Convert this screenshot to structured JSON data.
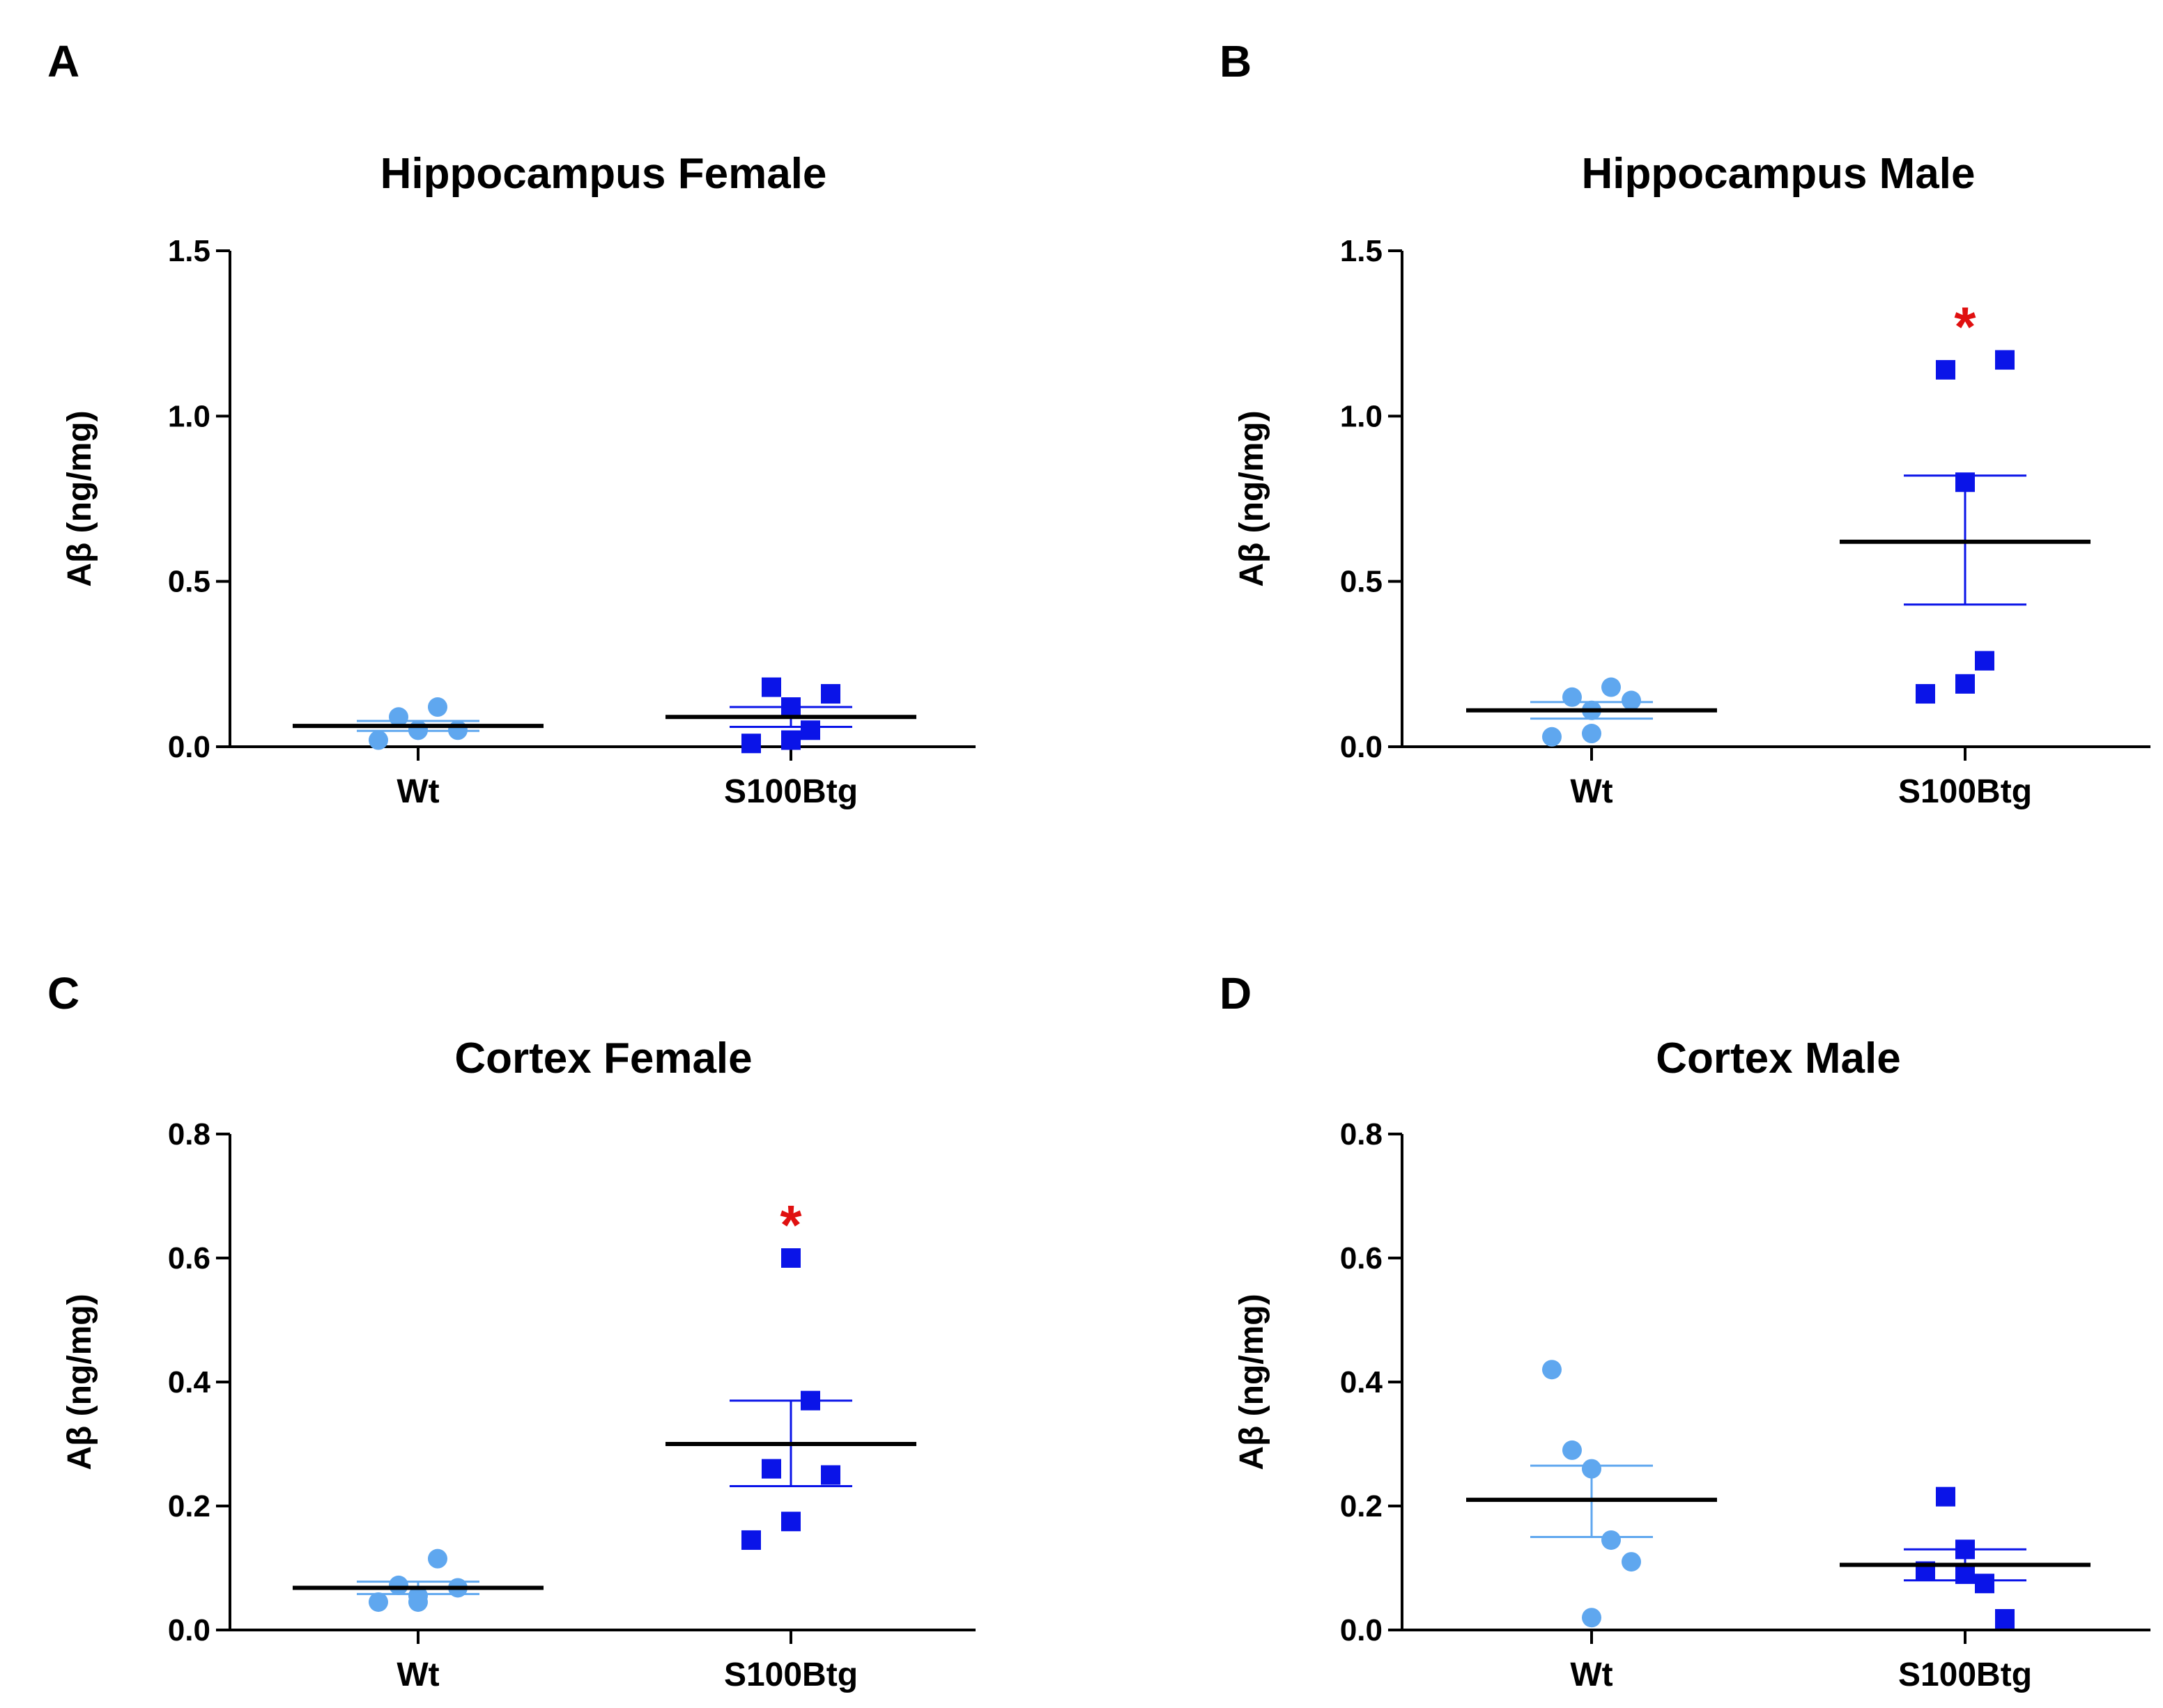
{
  "figure": {
    "colors": {
      "wt": "#5fa7ef",
      "tg": "#0a14e8",
      "mean": "#000000",
      "significance": "#e01010"
    },
    "marker_icons": {
      "wt": "circle-icon",
      "tg": "square-icon"
    }
  },
  "chart_data": [
    {
      "panel": "A",
      "type": "scatter",
      "title": "Hippocampus Female",
      "ylabel": "Aβ (ng/mg)",
      "xlabel": "",
      "ylim": [
        0,
        1.5
      ],
      "yticks": [
        0,
        0.5,
        1.0,
        1.5
      ],
      "ytick_labels": [
        "0.0",
        "0.5",
        "1.0",
        "1.5"
      ],
      "categories": [
        "Wt",
        "S100Btg"
      ],
      "series": [
        {
          "name": "Wt",
          "points": [
            0.02,
            0.09,
            0.05,
            0.12,
            0.05,
            0.05
          ],
          "mean": 0.063,
          "sem_low": 0.048,
          "sem_high": 0.078
        },
        {
          "name": "S100Btg",
          "points": [
            0.01,
            0.18,
            0.12,
            0.05,
            0.16,
            0.02
          ],
          "mean": 0.09,
          "sem_low": 0.06,
          "sem_high": 0.12
        }
      ],
      "significance": ""
    },
    {
      "panel": "B",
      "type": "scatter",
      "title": "Hippocampus Male",
      "ylabel": "Aβ (ng/mg)",
      "xlabel": "",
      "ylim": [
        0,
        1.5
      ],
      "yticks": [
        0,
        0.5,
        1.0,
        1.5
      ],
      "ytick_labels": [
        "0.0",
        "0.5",
        "1.0",
        "1.5"
      ],
      "categories": [
        "Wt",
        "S100Btg"
      ],
      "series": [
        {
          "name": "Wt",
          "points": [
            0.03,
            0.15,
            0.11,
            0.18,
            0.14,
            0.04
          ],
          "mean": 0.11,
          "sem_low": 0.085,
          "sem_high": 0.135
        },
        {
          "name": "S100Btg",
          "points": [
            0.16,
            1.14,
            0.8,
            0.26,
            1.17,
            0.19
          ],
          "mean": 0.62,
          "sem_low": 0.43,
          "sem_high": 0.82
        }
      ],
      "significance": "*"
    },
    {
      "panel": "C",
      "type": "scatter",
      "title": "Cortex Female",
      "ylabel": "Aβ (ng/mg)",
      "xlabel": "",
      "ylim": [
        0,
        0.8
      ],
      "yticks": [
        0,
        0.2,
        0.4,
        0.6,
        0.8
      ],
      "ytick_labels": [
        "0.0",
        "0.2",
        "0.4",
        "0.6",
        "0.8"
      ],
      "categories": [
        "Wt",
        "S100Btg"
      ],
      "series": [
        {
          "name": "Wt",
          "points": [
            0.045,
            0.072,
            0.055,
            0.115,
            0.068,
            0.045
          ],
          "mean": 0.068,
          "sem_low": 0.058,
          "sem_high": 0.078
        },
        {
          "name": "S100Btg",
          "points": [
            0.145,
            0.26,
            0.6,
            0.37,
            0.25,
            0.175
          ],
          "mean": 0.3,
          "sem_low": 0.232,
          "sem_high": 0.37
        }
      ],
      "significance": "*"
    },
    {
      "panel": "D",
      "type": "scatter",
      "title": "Cortex Male",
      "ylabel": "Aβ (ng/mg)",
      "xlabel": "",
      "ylim": [
        0,
        0.8
      ],
      "yticks": [
        0,
        0.2,
        0.4,
        0.6,
        0.8
      ],
      "ytick_labels": [
        "0.0",
        "0.2",
        "0.4",
        "0.6",
        "0.8"
      ],
      "categories": [
        "Wt",
        "S100Btg"
      ],
      "series": [
        {
          "name": "Wt",
          "points": [
            0.42,
            0.29,
            0.26,
            0.145,
            0.11,
            0.02
          ],
          "mean": 0.21,
          "sem_low": 0.15,
          "sem_high": 0.265
        },
        {
          "name": "S100Btg",
          "points": [
            0.095,
            0.215,
            0.13,
            0.075,
            0.018,
            0.09
          ],
          "mean": 0.105,
          "sem_low": 0.08,
          "sem_high": 0.13
        }
      ],
      "significance": ""
    }
  ]
}
